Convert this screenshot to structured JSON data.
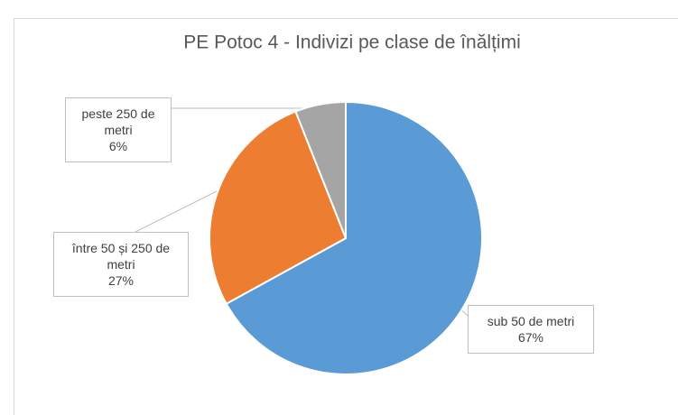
{
  "chart_data": {
    "type": "pie",
    "title": "PE Potoc 4 - Indivizi pe clase de înălțimi",
    "categories": [
      "sub 50 de metri",
      "între 50 și 250 de metri",
      "peste 250 de metri"
    ],
    "values": [
      67,
      27,
      6
    ],
    "value_labels": [
      "67%",
      "27%",
      "6%"
    ],
    "colors": [
      "#5b9bd5",
      "#ed7d31",
      "#a5a5a5"
    ]
  }
}
